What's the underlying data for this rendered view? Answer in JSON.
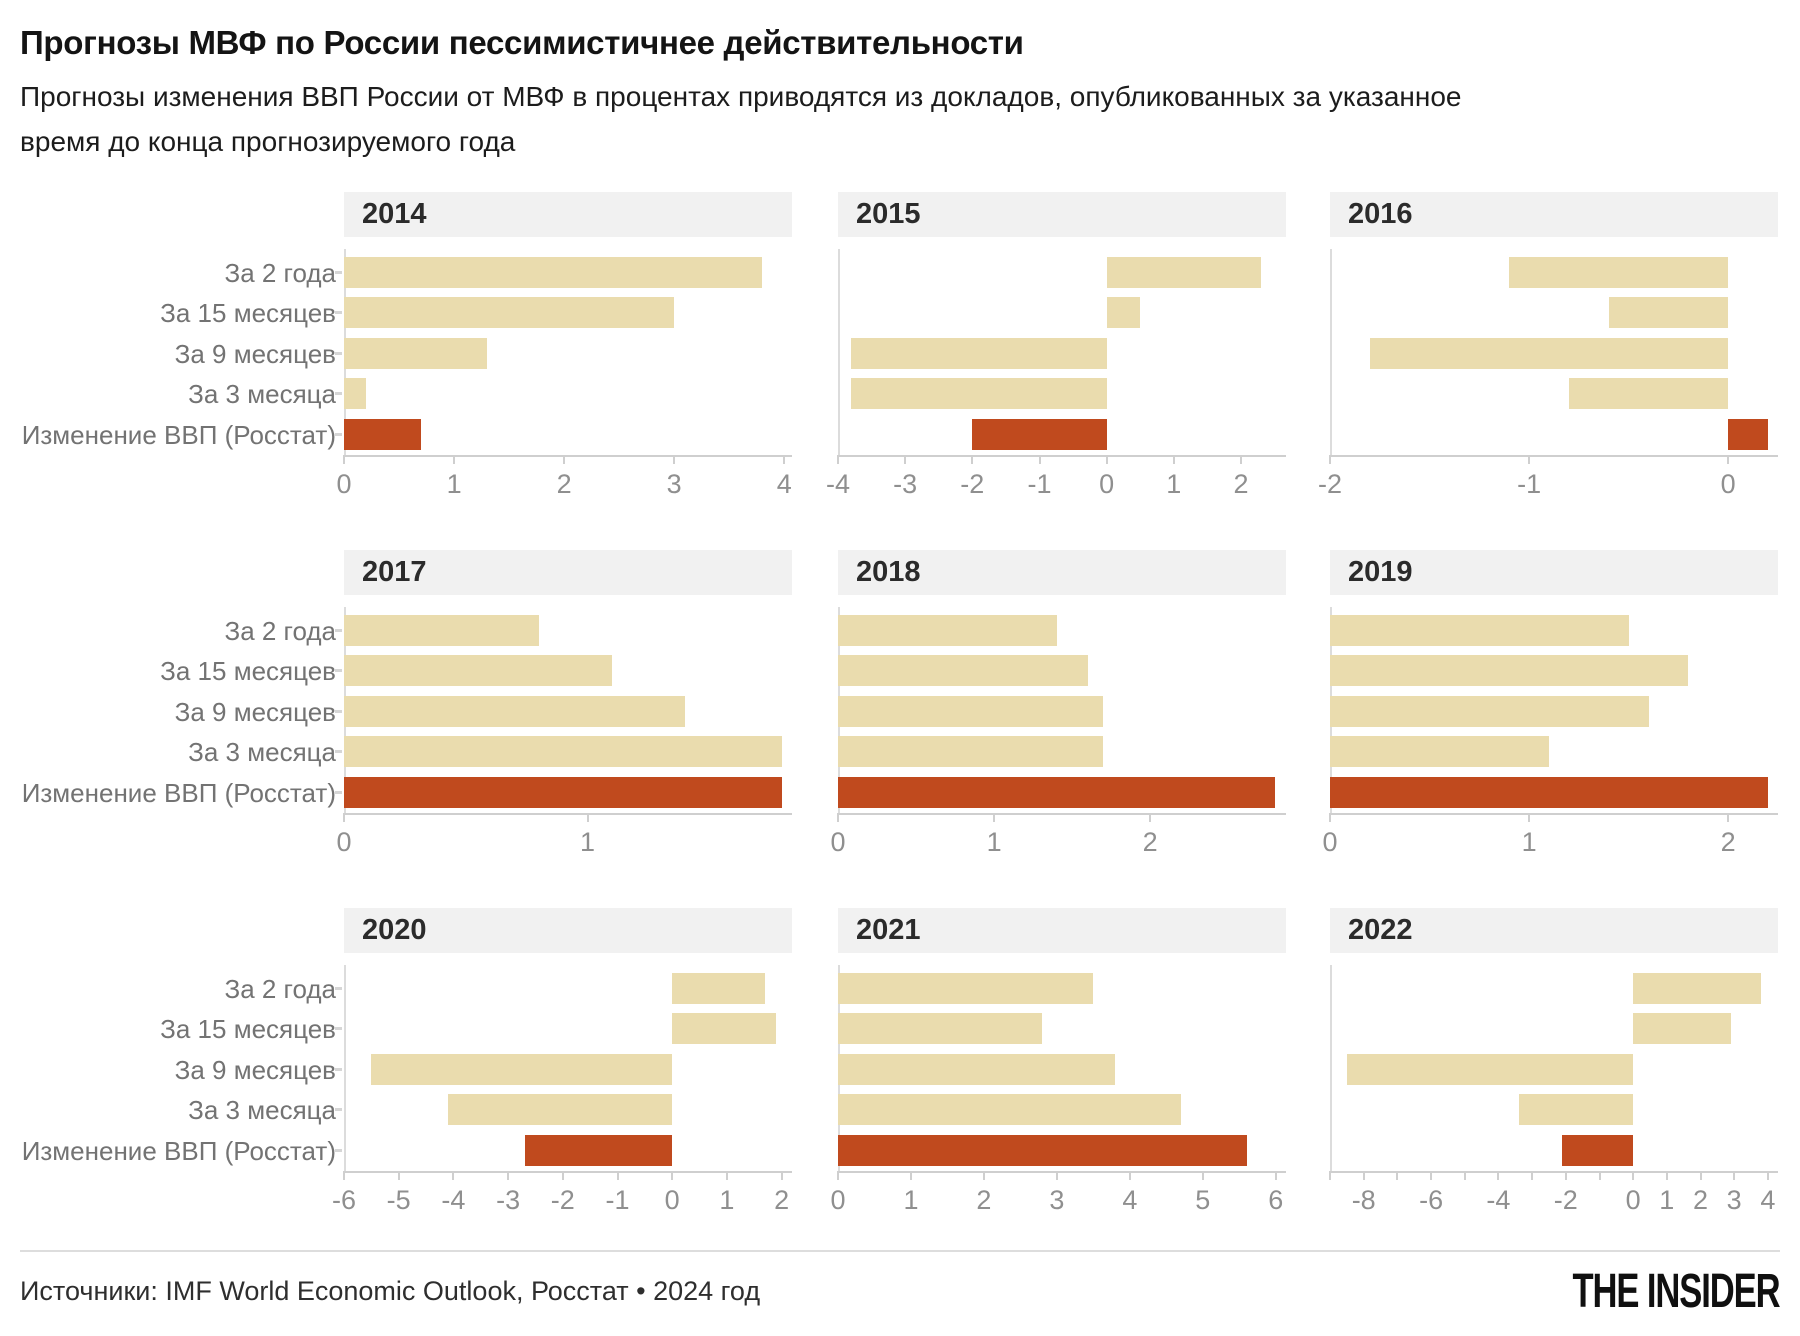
{
  "header": {
    "title": "Прогнозы МВФ по России пессимистичнее действительности",
    "subtitle": "Прогнозы изменения ВВП России от МВФ в процентах приводятся из докладов, опубликованных за указанное время до конца прогнозируемого года"
  },
  "footer": {
    "sources": "Источники: IMF World Economic Outlook, Росстат • 2024 год",
    "logo": "THE INSIDER"
  },
  "chart_data": {
    "type": "bar",
    "orientation": "horizontal",
    "grid": "off",
    "categories": [
      "За 2 года",
      "За 15 месяцев",
      "За 9 месяцев",
      "За 3 месяца",
      "Изменение ВВП (Росстат)"
    ],
    "colors": {
      "forecast": "#eadcae",
      "actual": "#c04a1e"
    },
    "panels": [
      {
        "year": "2014",
        "xlim": [
          0,
          4.07
        ],
        "ticks": [
          0,
          1,
          2,
          3,
          4
        ],
        "tick_labels": [
          "0",
          "1",
          "2",
          "3",
          "4"
        ],
        "values": [
          3.8,
          3.0,
          1.3,
          0.2,
          0.7
        ]
      },
      {
        "year": "2015",
        "xlim": [
          -4,
          2.67
        ],
        "ticks": [
          -4,
          -3,
          -2,
          -1,
          0,
          1,
          2
        ],
        "tick_labels": [
          "-4",
          "-3",
          "-2",
          "-1",
          "0",
          "1",
          "2"
        ],
        "values": [
          2.3,
          0.5,
          -3.8,
          -3.8,
          -2.0
        ]
      },
      {
        "year": "2016",
        "xlim": [
          -2,
          0.25
        ],
        "ticks": [
          -2,
          -1,
          0
        ],
        "tick_labels": [
          "-2",
          "-1",
          "0"
        ],
        "values": [
          -1.1,
          -0.6,
          -1.8,
          -0.8,
          0.2
        ]
      },
      {
        "year": "2017",
        "xlim": [
          0,
          1.84
        ],
        "ticks": [
          0,
          1
        ],
        "tick_labels": [
          "0",
          "1"
        ],
        "values": [
          0.8,
          1.1,
          1.4,
          1.8,
          1.8
        ]
      },
      {
        "year": "2018",
        "xlim": [
          0,
          2.87
        ],
        "ticks": [
          0,
          1,
          2
        ],
        "tick_labels": [
          "0",
          "1",
          "2"
        ],
        "values": [
          1.4,
          1.6,
          1.7,
          1.7,
          2.8
        ]
      },
      {
        "year": "2019",
        "xlim": [
          0,
          2.25
        ],
        "ticks": [
          0,
          1,
          2
        ],
        "tick_labels": [
          "0",
          "1",
          "2"
        ],
        "values": [
          1.5,
          1.8,
          1.6,
          1.1,
          2.2
        ]
      },
      {
        "year": "2020",
        "xlim": [
          -6,
          2.19
        ],
        "ticks": [
          -6,
          -5,
          -4,
          -3,
          -2,
          -1,
          0,
          1,
          2
        ],
        "tick_labels": [
          "-6",
          "-5",
          "-4",
          "-3",
          "-2",
          "-1",
          "0",
          "1",
          "2"
        ],
        "values": [
          1.7,
          1.9,
          -5.5,
          -4.1,
          -2.7
        ]
      },
      {
        "year": "2021",
        "xlim": [
          0,
          6.14
        ],
        "ticks": [
          0,
          1,
          2,
          3,
          4,
          5,
          6
        ],
        "tick_labels": [
          "0",
          "1",
          "2",
          "3",
          "4",
          "5",
          "6"
        ],
        "values": [
          3.5,
          2.8,
          3.8,
          4.7,
          5.6
        ]
      },
      {
        "year": "2022",
        "xlim": [
          -9,
          4.3
        ],
        "ticks": [
          -9,
          -8,
          -7,
          -6,
          -5,
          -4,
          -3,
          -2,
          -1,
          0,
          1,
          2,
          3,
          4
        ],
        "tick_labels": [
          "",
          "-8",
          "",
          "-6",
          "",
          "-4",
          "",
          "-2",
          "",
          "0",
          "1",
          "2",
          "3",
          "4"
        ],
        "values": [
          3.8,
          2.9,
          -8.5,
          -3.4,
          -2.1
        ]
      }
    ]
  }
}
